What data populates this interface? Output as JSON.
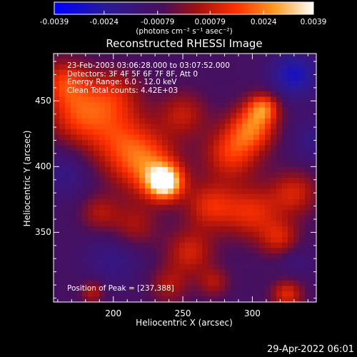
{
  "colorbar": {
    "ticks": [
      {
        "value": -0.0039,
        "label": "-0.0039"
      },
      {
        "value": -0.0024,
        "label": "-0.0024"
      },
      {
        "value": -0.00079,
        "label": "-0.00079"
      },
      {
        "value": 0.00079,
        "label": "0.00079"
      },
      {
        "value": 0.0024,
        "label": "0.0024"
      },
      {
        "value": 0.0039,
        "label": "0.0039"
      }
    ],
    "range": [
      -0.0039,
      0.0039
    ],
    "units": "(photons cm⁻² s⁻¹ asec⁻²)"
  },
  "chart_data": {
    "type": "heatmap",
    "title": "Reconstructed RHESSI Image",
    "xlabel": "Heliocentric X (arcsec)",
    "ylabel": "Heliocentric Y (arcsec)",
    "xlim": [
      157,
      346
    ],
    "ylim": [
      297,
      486
    ],
    "xticks": [
      200,
      250,
      300
    ],
    "yticks": [
      350,
      400,
      450
    ],
    "annotations": [
      "23-Feb-2003 03:06:28.000 to 03:07:52.000",
      "Detectors: 3F 4F 5F 6F 7F 8F, Att 0",
      "Energy Range: 6.0 - 12.0 keV",
      "Clean     Total counts: 4.42E+03"
    ],
    "peak_label": "Position of Peak = [237,388]",
    "peak": [
      237,
      388
    ],
    "sources": [
      {
        "x": 237,
        "y": 388,
        "amp": 1.0,
        "sigma": 9
      },
      {
        "x": 225,
        "y": 400,
        "amp": 0.55,
        "sigma": 16
      },
      {
        "x": 205,
        "y": 420,
        "amp": 0.45,
        "sigma": 18
      },
      {
        "x": 175,
        "y": 440,
        "amp": 0.5,
        "sigma": 16
      },
      {
        "x": 165,
        "y": 465,
        "amp": 0.45,
        "sigma": 12
      },
      {
        "x": 200,
        "y": 455,
        "amp": 0.35,
        "sigma": 14
      },
      {
        "x": 250,
        "y": 440,
        "amp": 0.35,
        "sigma": 12
      },
      {
        "x": 300,
        "y": 430,
        "amp": 0.6,
        "sigma": 12
      },
      {
        "x": 308,
        "y": 445,
        "amp": 0.55,
        "sigma": 8
      },
      {
        "x": 285,
        "y": 410,
        "amp": 0.5,
        "sigma": 14
      },
      {
        "x": 270,
        "y": 370,
        "amp": 0.45,
        "sigma": 13
      },
      {
        "x": 300,
        "y": 365,
        "amp": 0.45,
        "sigma": 14
      },
      {
        "x": 330,
        "y": 380,
        "amp": 0.4,
        "sigma": 12
      },
      {
        "x": 215,
        "y": 355,
        "amp": 0.3,
        "sigma": 12
      },
      {
        "x": 190,
        "y": 365,
        "amp": 0.3,
        "sigma": 10
      },
      {
        "x": 255,
        "y": 335,
        "amp": 0.4,
        "sigma": 12
      },
      {
        "x": 320,
        "y": 345,
        "amp": 0.4,
        "sigma": 10
      },
      {
        "x": 240,
        "y": 310,
        "amp": 0.3,
        "sigma": 10
      },
      {
        "x": 185,
        "y": 305,
        "amp": 0.35,
        "sigma": 6
      },
      {
        "x": 325,
        "y": 303,
        "amp": 0.45,
        "sigma": 8
      },
      {
        "x": 272,
        "y": 312,
        "amp": 0.3,
        "sigma": 8
      },
      {
        "x": 330,
        "y": 470,
        "amp": -0.45,
        "sigma": 12
      },
      {
        "x": 345,
        "y": 420,
        "amp": -0.2,
        "sigma": 12
      },
      {
        "x": 165,
        "y": 395,
        "amp": -0.2,
        "sigma": 14
      },
      {
        "x": 200,
        "y": 330,
        "amp": -0.2,
        "sigma": 15
      },
      {
        "x": 330,
        "y": 330,
        "amp": -0.15,
        "sigma": 10
      }
    ]
  },
  "timestamp": "29-Apr-2022 06:01"
}
